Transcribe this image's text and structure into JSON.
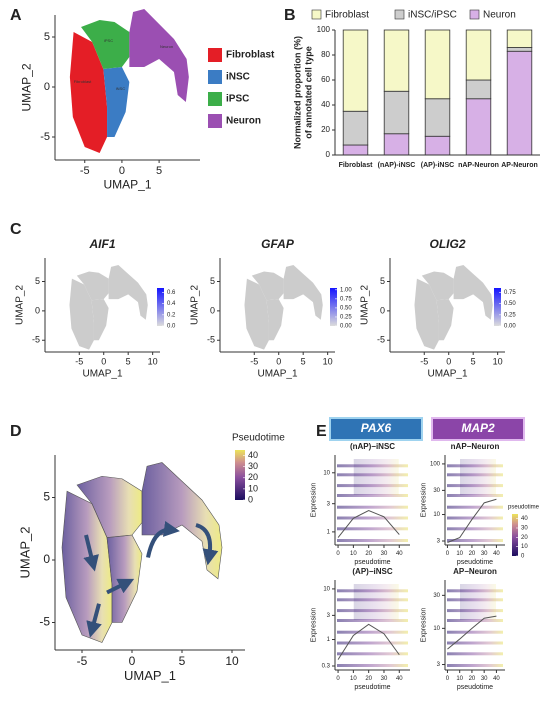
{
  "chart_data": [
    {
      "type": "scatter",
      "panel_label": "A",
      "xlabel": "UMAP_1",
      "ylabel": "UMAP_2",
      "xlim": [
        -9,
        10.5
      ],
      "ylim": [
        -7.3,
        7.2
      ],
      "xticks": [
        -5,
        0,
        5
      ],
      "yticks": [
        -5,
        0,
        5
      ],
      "series": [
        {
          "name": "Fibroblast",
          "color": "#e41e26"
        },
        {
          "name": "iNSC",
          "color": "#3b7cc4"
        },
        {
          "name": "iPSC",
          "color": "#3cae49"
        },
        {
          "name": "Neuron",
          "color": "#9b4fb2"
        }
      ]
    },
    {
      "type": "bar",
      "stacked": true,
      "panel_label": "B",
      "ylabel": [
        "Normalized proportion (%)",
        "of annotated cell type"
      ],
      "categories": [
        "Fibroblast",
        "(nAP)-iNSC",
        "(AP)-iNSC",
        "nAP-Neuron",
        "AP-Neuron"
      ],
      "ylim": [
        0,
        100
      ],
      "yticks": [
        0,
        20,
        40,
        60,
        80,
        100
      ],
      "series": [
        {
          "name": "Fibroblast",
          "color": "#f6f8c8",
          "values": [
            65,
            49,
            55,
            40,
            14
          ]
        },
        {
          "name": "iNSC/iPSC",
          "color": "#cdcdcd",
          "values": [
            27,
            34,
            30,
            15,
            3
          ]
        },
        {
          "name": "Neuron",
          "color": "#d7b0e6",
          "values": [
            8,
            17,
            15,
            45,
            83
          ]
        }
      ]
    },
    {
      "type": "scatter",
      "panel_label": "C",
      "title": "AIF1",
      "xlabel": "UMAP_1",
      "ylabel": "UMAP_2",
      "xlim": [
        -12,
        11.5
      ],
      "ylim": [
        -7,
        9
      ],
      "xticks": [
        -5,
        0,
        5,
        10
      ],
      "yticks": [
        -5,
        0,
        5
      ],
      "colorbar": {
        "clim": [
          0,
          0.68
        ],
        "ticks": [
          {
            "value": 0,
            "label": "0.0"
          },
          {
            "value": 0.2,
            "label": "0.2"
          },
          {
            "value": 0.4,
            "label": "0.4"
          },
          {
            "value": 0.6,
            "label": "0.6"
          }
        ]
      }
    },
    {
      "type": "scatter",
      "title": "GFAP",
      "xlabel": "UMAP_1",
      "ylabel": "UMAP_2",
      "xlim": [
        -12,
        11.5
      ],
      "ylim": [
        -7,
        9
      ],
      "xticks": [
        -5,
        0,
        5,
        10
      ],
      "yticks": [
        -5,
        0,
        5
      ],
      "colorbar": {
        "clim": [
          0,
          1.05
        ],
        "ticks": [
          {
            "value": 0,
            "label": "0.00"
          },
          {
            "value": 0.25,
            "label": "0.25"
          },
          {
            "value": 0.5,
            "label": "0.50"
          },
          {
            "value": 0.75,
            "label": "0.75"
          },
          {
            "value": 1,
            "label": "1.00"
          }
        ]
      }
    },
    {
      "type": "scatter",
      "title": "OLIG2",
      "xlabel": "UMAP_1",
      "ylabel": "UMAP_2",
      "xlim": [
        -12,
        11.5
      ],
      "ylim": [
        -7,
        9
      ],
      "xticks": [
        -5,
        0,
        5,
        10
      ],
      "yticks": [
        -5,
        0,
        5
      ],
      "colorbar": {
        "clim": [
          0,
          0.85
        ],
        "ticks": [
          {
            "value": 0,
            "label": "0.00"
          },
          {
            "value": 0.25,
            "label": "0.25"
          },
          {
            "value": 0.5,
            "label": "0.50"
          },
          {
            "value": 0.75,
            "label": "0.75"
          }
        ]
      }
    },
    {
      "type": "scatter",
      "panel_label": "D",
      "xlabel": "UMAP_1",
      "ylabel": "UMAP_2",
      "xlim": [
        -7.7,
        11.3
      ],
      "ylim": [
        -7.2,
        8.4
      ],
      "xticks": [
        -5,
        0,
        5,
        10
      ],
      "yticks": [
        -5,
        0,
        5
      ],
      "colorbar": {
        "title": "Pseudotime",
        "clim": [
          0,
          45
        ],
        "ticks": [
          0,
          10,
          20,
          30,
          40
        ]
      }
    },
    {
      "type": "line",
      "panel_label": "E",
      "header": "PAX6",
      "title": "(nAP)−iNSC",
      "log_y": true,
      "xlabel": "pseudotime",
      "ylabel": "Expression",
      "xlim": [
        -2,
        47
      ],
      "ylim": [
        0.6,
        20
      ],
      "xticks": [
        0,
        10,
        20,
        30,
        40
      ],
      "yticks": [
        1,
        3,
        10
      ],
      "color": "#555555",
      "x": [
        0,
        10,
        20,
        30,
        40
      ],
      "values": [
        0.8,
        1.7,
        2.3,
        1.8,
        0.9
      ]
    },
    {
      "type": "line",
      "header": "MAP2",
      "title": "nAP−Neuron",
      "log_y": true,
      "xlabel": "pseudotime",
      "ylabel": "Expression",
      "xlim": [
        -2,
        47
      ],
      "ylim": [
        2.5,
        150
      ],
      "xticks": [
        0,
        10,
        20,
        30,
        40
      ],
      "yticks": [
        3,
        10,
        30,
        100
      ],
      "color": "#555555",
      "x": [
        0,
        10,
        20,
        30,
        40
      ],
      "values": [
        2.8,
        3.5,
        8,
        17,
        20
      ],
      "colorbar": {
        "title": "pseudotime",
        "clim": [
          0,
          45
        ],
        "ticks": [
          0,
          10,
          20,
          30,
          40
        ]
      }
    },
    {
      "type": "line",
      "title": "(AP)−iNSC",
      "log_y": true,
      "xlabel": "pseudotime",
      "ylabel": "Expression",
      "xlim": [
        -2,
        47
      ],
      "ylim": [
        0.25,
        15
      ],
      "xticks": [
        0,
        10,
        20,
        30,
        40
      ],
      "yticks": [
        0.3,
        1,
        3,
        10
      ],
      "color": "#555555",
      "x": [
        0,
        10,
        20,
        30,
        40
      ],
      "values": [
        0.4,
        1.2,
        2,
        1.3,
        0.5
      ]
    },
    {
      "type": "line",
      "title": "AP−Neuron",
      "log_y": true,
      "xlabel": "pseudotime",
      "ylabel": "Expression",
      "xlim": [
        -2,
        47
      ],
      "ylim": [
        2.5,
        50
      ],
      "xticks": [
        0,
        10,
        20,
        30,
        40
      ],
      "yticks": [
        3,
        10,
        30
      ],
      "color": "#555555",
      "x": [
        0,
        10,
        20,
        30,
        40
      ],
      "values": [
        5,
        7,
        10,
        14,
        15
      ]
    }
  ]
}
